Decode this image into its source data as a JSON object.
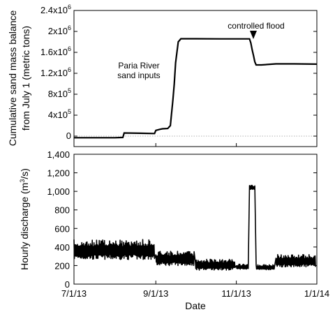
{
  "chart_data": [
    {
      "type": "line",
      "ylabel_line1": "Cumulative sand mass balance",
      "ylabel_line2": "from July 1 (metric tons)",
      "ylim": [
        -200000,
        2400000
      ],
      "y_ticks": [
        {
          "value": 0,
          "base": "0",
          "exp": ""
        },
        {
          "value": 400000,
          "base": "4x10",
          "exp": "5"
        },
        {
          "value": 800000,
          "base": "8x10",
          "exp": "5"
        },
        {
          "value": 1200000,
          "base": "1.2x10",
          "exp": "6"
        },
        {
          "value": 1600000,
          "base": "1.6x10",
          "exp": "6"
        },
        {
          "value": 2000000,
          "base": "2x10",
          "exp": "6"
        },
        {
          "value": 2400000,
          "base": "2.4x10",
          "exp": "6"
        }
      ],
      "zero_line": "dotted",
      "annotations": [
        {
          "text_lines": [
            "Paria River",
            "sand inputs"
          ]
        },
        {
          "text_lines": [
            "controlled flood"
          ],
          "marker": "down-triangle"
        }
      ],
      "series": [
        {
          "x": [
            "2013-07-01",
            "2013-07-15",
            "2013-08-01",
            "2013-08-07",
            "2013-08-08",
            "2013-08-20",
            "2013-08-31",
            "2013-09-01",
            "2013-09-04",
            "2013-09-06",
            "2013-09-10",
            "2013-09-12",
            "2013-09-14",
            "2013-09-15",
            "2013-09-16",
            "2013-09-18",
            "2013-09-20",
            "2013-10-01",
            "2013-10-20",
            "2013-11-01",
            "2013-11-09",
            "2013-11-11",
            "2013-11-12",
            "2013-11-13",
            "2013-11-14",
            "2013-11-15",
            "2013-11-16",
            "2013-11-20",
            "2013-12-01",
            "2013-12-15",
            "2014-01-01"
          ],
          "y": [
            -30000,
            -30000,
            -30000,
            -25000,
            60000,
            55000,
            50000,
            110000,
            130000,
            140000,
            145000,
            200000,
            700000,
            1000000,
            1400000,
            1800000,
            1860000,
            1860000,
            1858000,
            1858000,
            1858000,
            1858000,
            1780000,
            1650000,
            1540000,
            1420000,
            1360000,
            1360000,
            1380000,
            1380000,
            1375000
          ]
        }
      ]
    },
    {
      "type": "line",
      "xlabel": "Date",
      "ylabel": "Hourly discharge (m",
      "ylabel_sup": "3",
      "ylabel_end": "/s)",
      "ylim": [
        0,
        1400
      ],
      "y_tick_labels": [
        "0",
        "200",
        "400",
        "600",
        "800",
        "1,000",
        "1,200",
        "1,400"
      ],
      "x_tick_labels": [
        "7/1/13",
        "9/1/13",
        "11/1/13",
        "1/1/14"
      ],
      "series": [
        {
          "description_free": true,
          "segments": [
            {
              "start": "2013-07-01",
              "end": "2013-08-31",
              "low": 265,
              "high": 480
            },
            {
              "start": "2013-09-01",
              "end": "2013-09-30",
              "low": 200,
              "high": 355
            },
            {
              "start": "2013-10-01",
              "end": "2013-10-31",
              "low": 150,
              "high": 270
            },
            {
              "start": "2013-11-01",
              "end": "2013-11-10",
              "low": 160,
              "high": 215
            },
            {
              "start": "2013-11-11",
              "end": "2013-11-15",
              "low": 1020,
              "high": 1065
            },
            {
              "start": "2013-11-16",
              "end": "2013-11-30",
              "low": 155,
              "high": 210
            },
            {
              "start": "2013-12-01",
              "end": "2013-12-31",
              "low": 185,
              "high": 320
            }
          ]
        }
      ]
    }
  ]
}
